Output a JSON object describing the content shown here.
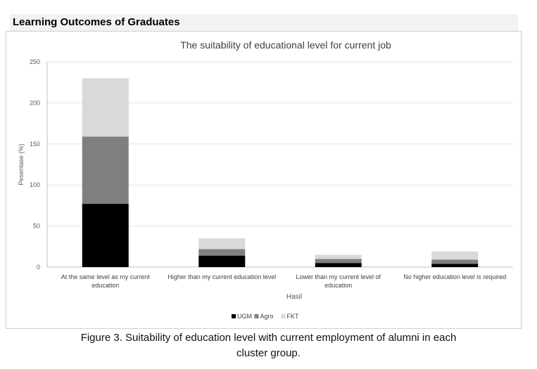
{
  "section_title": "Learning Outcomes of Graduates",
  "caption": {
    "line1": "Figure 3. Suitability of education level with current employment of alumni in each",
    "line2": "cluster group."
  },
  "chart_data": {
    "type": "bar",
    "stacked": true,
    "title": "The suitability of educational level for current job",
    "xlabel": "Hasil",
    "ylabel": "Pesentase (%)",
    "ylim": [
      0,
      250
    ],
    "yticks": [
      0,
      50,
      100,
      150,
      200,
      250
    ],
    "grid": true,
    "legend_position": "bottom",
    "categories": [
      [
        "At the same level as my current",
        "education"
      ],
      [
        "Higher than my current education level"
      ],
      [
        "Lower than my current level of",
        "education"
      ],
      [
        "No higher education level is required"
      ]
    ],
    "series": [
      {
        "name": "UGM",
        "color": "#000000",
        "values": [
          77,
          14,
          5,
          4
        ]
      },
      {
        "name": "Agro",
        "color": "#7f7f7f",
        "values": [
          82,
          8,
          5,
          5
        ]
      },
      {
        "name": "FKT",
        "color": "#d9d9d9",
        "values": [
          71,
          13,
          5,
          10
        ]
      }
    ]
  }
}
